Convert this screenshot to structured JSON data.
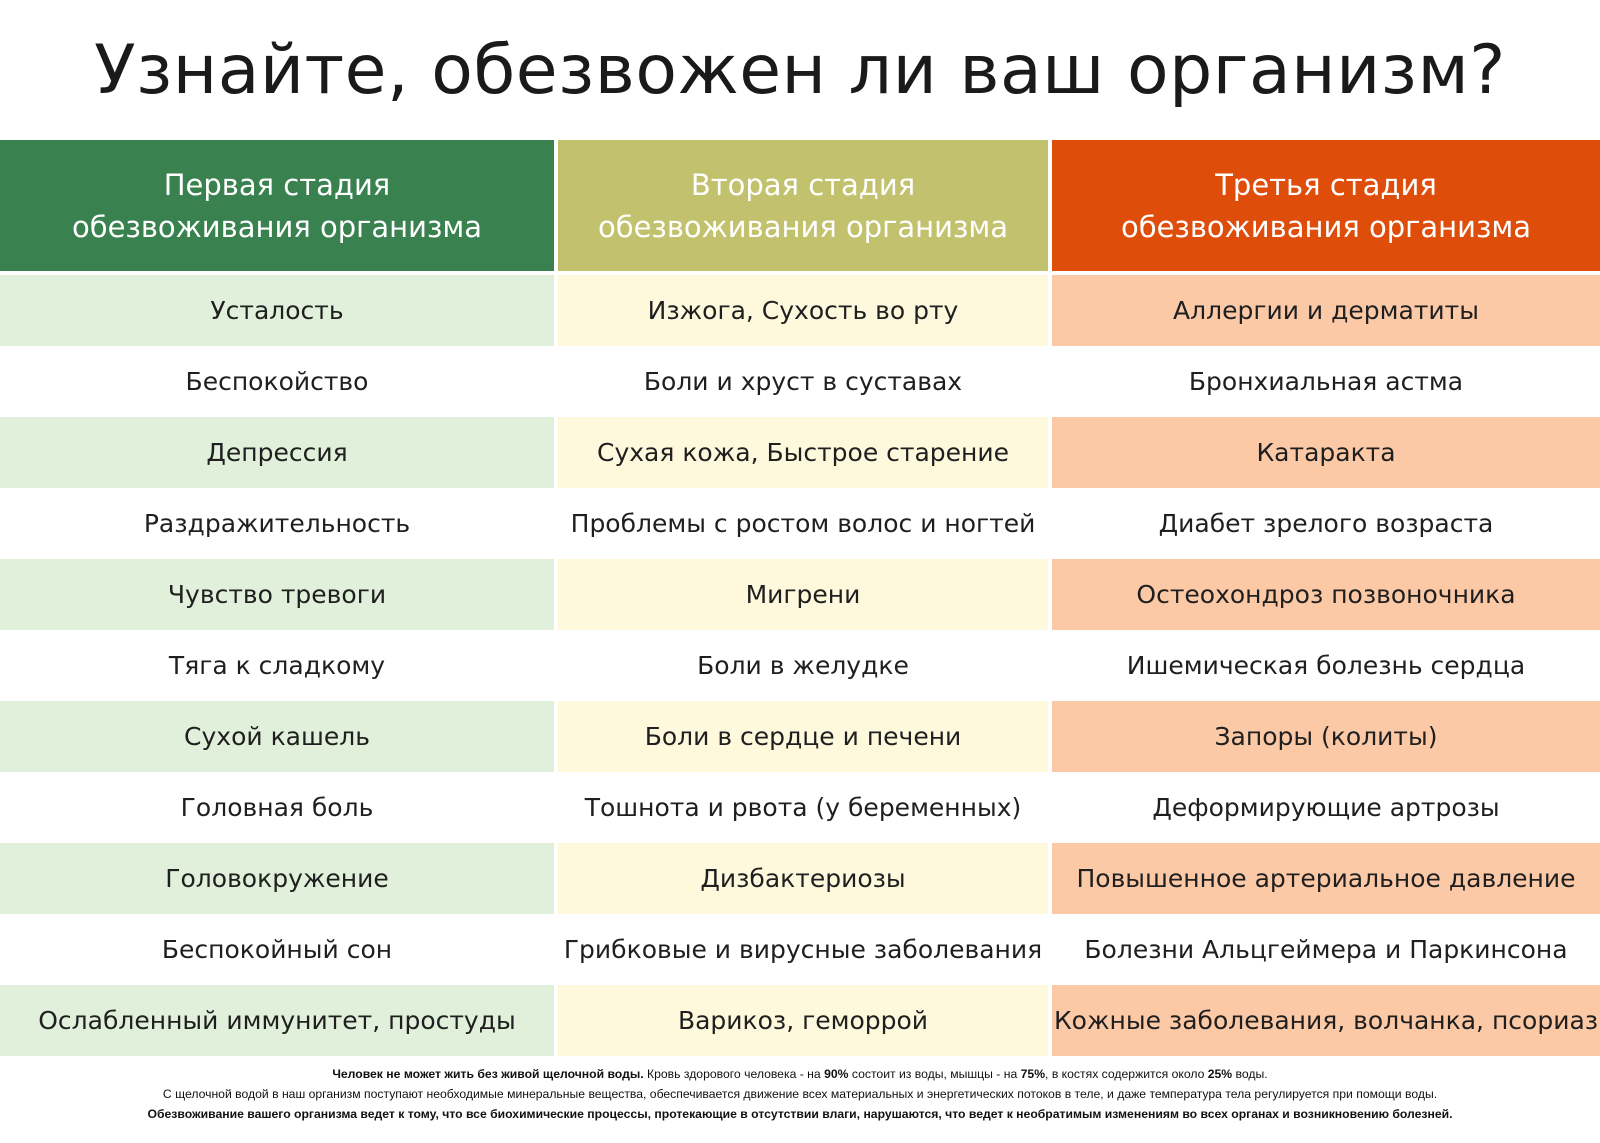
{
  "title": "Узнайте, обезвожен ли ваш организм?",
  "colors": {
    "stage1_header": "#3a8150",
    "stage2_header": "#c2c26e",
    "stage3_header": "#df4d0b",
    "stage1_tint": "#e0f0da",
    "stage2_tint": "#fef8dd",
    "stage3_tint": "#fcc9a7"
  },
  "columns": [
    {
      "header_line1": "Первая стадия",
      "header_line2": "обезвоживания организма",
      "items": [
        "Усталость",
        "Беспокойство",
        "Депрессия",
        "Раздражительность",
        "Чувство тревоги",
        "Тяга к сладкому",
        "Сухой кашель",
        "Головная боль",
        "Головокружение",
        "Беспокойный сон",
        "Ослабленный иммунитет, простуды"
      ]
    },
    {
      "header_line1": "Вторая стадия",
      "header_line2": "обезвоживания организма",
      "items": [
        "Изжога, Сухость во рту",
        "Боли и хруст в суставах",
        "Сухая кожа, Быстрое старение",
        "Проблемы с ростом волос и ногтей",
        "Мигрени",
        "Боли в желудке",
        "Боли в сердце и печени",
        "Тошнота и рвота (у беременных)",
        "Дизбактериозы",
        "Грибковые и вирусные заболевания",
        "Варикоз, геморрой"
      ]
    },
    {
      "header_line1": "Третья стадия",
      "header_line2": "обезвоживания организма",
      "items": [
        "Аллергии и дерматиты",
        "Бронхиальная астма",
        "Катаракта",
        "Диабет зрелого возраста",
        "Остеохондроз позвоночника",
        "Ишемическая болезнь сердца",
        "Запоры (колиты)",
        "Деформирующие артрозы",
        "Повышенное артериальное давление",
        "Болезни Альцгеймера и Паркинсона",
        "Кожные заболевания, волчанка, псориаз"
      ]
    }
  ],
  "footer": {
    "line1_bold": "Человек не может жить без живой щелочной воды.",
    "line1_a": " Кровь здорового человека - на ",
    "line1_b1": "90%",
    "line1_c": " состоит из воды, мышцы - на ",
    "line1_b2": "75%",
    "line1_d": ",  в костях содержится около ",
    "line1_b3": "25%",
    "line1_e": " воды.",
    "line2": "С щелочной водой в наш организм поступают необходимые минеральные вещества, обеспечивается движение всех материальных и энергетических потоков в теле, и даже температура тела регулируется при помощи воды.",
    "line3": "Обезвоживание вашего организма ведет к тому, что все биохимические процессы, протекающие в отсутствии влаги, нарушаются, что ведет к необратимым изменениям во всех органах и возникновению болезней."
  }
}
